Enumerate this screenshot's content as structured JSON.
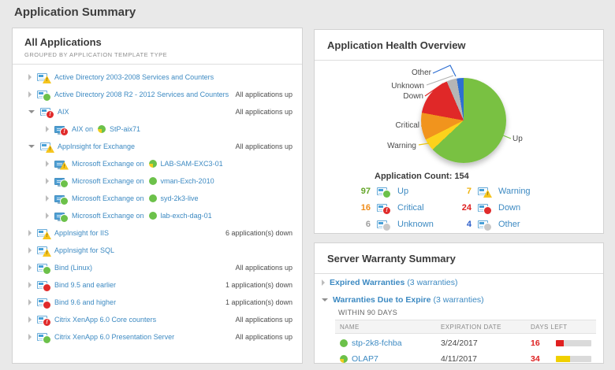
{
  "page": {
    "title": "Application Summary"
  },
  "all_applications": {
    "title": "All Applications",
    "subtitle": "GROUPED BY APPLICATION TEMPLATE TYPE",
    "rows": [
      {
        "level": 0,
        "arrow": "collapsed",
        "icon": "template",
        "status": "warning",
        "label": "Active Directory 2003-2008 Services and Counters",
        "status_text": ""
      },
      {
        "level": 0,
        "arrow": "collapsed",
        "icon": "template",
        "status": "up",
        "label": "Active Directory 2008 R2 - 2012 Services and Counters",
        "status_text": "All applications up"
      },
      {
        "level": 0,
        "arrow": "expanded",
        "icon": "template",
        "status": "critical",
        "label": "AIX",
        "status_text": "All applications up"
      },
      {
        "level": 1,
        "arrow": "collapsed",
        "icon": "monitor",
        "status": "critical",
        "label": "AIX on",
        "node": {
          "icon": "green-yellow",
          "name": "StP-aix71"
        }
      },
      {
        "level": 0,
        "arrow": "expanded",
        "icon": "template",
        "status": "warning",
        "label": "AppInsight for Exchange",
        "status_text": "All applications up"
      },
      {
        "level": 1,
        "arrow": "collapsed",
        "icon": "monitor",
        "status": "warning",
        "label": "Microsoft Exchange on",
        "node": {
          "icon": "green-yellow",
          "name": "LAB-SAM-EXC3-01"
        }
      },
      {
        "level": 1,
        "arrow": "collapsed",
        "icon": "monitor",
        "status": "up",
        "label": "Microsoft Exchange on",
        "node": {
          "icon": "green",
          "name": "vman-Exch-2010"
        }
      },
      {
        "level": 1,
        "arrow": "collapsed",
        "icon": "monitor",
        "status": "up",
        "label": "Microsoft Exchange on",
        "node": {
          "icon": "green",
          "name": "syd-2k3-live"
        }
      },
      {
        "level": 1,
        "arrow": "collapsed",
        "icon": "monitor",
        "status": "up",
        "label": "Microsoft Exchange on",
        "node": {
          "icon": "green",
          "name": "lab-exch-dag-01"
        }
      },
      {
        "level": 0,
        "arrow": "collapsed",
        "icon": "template",
        "status": "warning",
        "label": "AppInsight for IIS",
        "status_text": "6 application(s) down"
      },
      {
        "level": 0,
        "arrow": "collapsed",
        "icon": "template",
        "status": "warning",
        "label": "AppInsight for SQL",
        "status_text": ""
      },
      {
        "level": 0,
        "arrow": "collapsed",
        "icon": "template",
        "status": "up",
        "label": "Bind (Linux)",
        "status_text": "All applications up"
      },
      {
        "level": 0,
        "arrow": "collapsed",
        "icon": "template",
        "status": "down",
        "label": "Bind 9.5 and earlier",
        "status_text": "1 application(s) down"
      },
      {
        "level": 0,
        "arrow": "collapsed",
        "icon": "template",
        "status": "down",
        "label": "Bind 9.6 and higher",
        "status_text": "1 application(s) down"
      },
      {
        "level": 0,
        "arrow": "collapsed",
        "icon": "template",
        "status": "critical",
        "label": "Citrix XenApp 6.0 Core counters",
        "status_text": "All applications up"
      },
      {
        "level": 0,
        "arrow": "collapsed",
        "icon": "template",
        "status": "up",
        "label": "Citrix XenApp 6.0 Presentation Server",
        "status_text": "All applications up"
      }
    ]
  },
  "health": {
    "title": "Application Health Overview",
    "count_label": "Application Count: 154"
  },
  "chart_data": {
    "type": "pie",
    "title": "Application Health Overview",
    "total": 154,
    "total_label": "Application Count: 154",
    "legend_position": "bottom",
    "slices": [
      {
        "label": "Up",
        "value": 97,
        "color": "#79c142",
        "count_color": "#64a529",
        "badge": "up"
      },
      {
        "label": "Warning",
        "value": 7,
        "color": "#fcd21c",
        "count_color": "#efb310",
        "badge": "warning"
      },
      {
        "label": "Critical",
        "value": 16,
        "color": "#f1941d",
        "count_color": "#ef8c1a",
        "badge": "critical"
      },
      {
        "label": "Down",
        "value": 24,
        "color": "#e02828",
        "count_color": "#de2020",
        "badge": "down"
      },
      {
        "label": "Unknown",
        "value": 6,
        "color": "#b5b5b5",
        "count_color": "#9e9e9e",
        "badge": "muted"
      },
      {
        "label": "Other",
        "value": 4,
        "color": "#2e6fd2",
        "count_color": "#2d5ec9",
        "badge": "muted"
      }
    ]
  },
  "warranty": {
    "title": "Server Warranty Summary",
    "groups": [
      {
        "arrow": "collapsed",
        "name": "Expired Warranties",
        "suffix": "(3 warranties)"
      },
      {
        "arrow": "expanded",
        "name": "Warranties Due to Expire",
        "suffix": "(3 warranties)"
      }
    ],
    "within_label": "WITHIN 90 DAYS",
    "table": {
      "headers": [
        "NAME",
        "EXPIRATION DATE",
        "DAYS LEFT"
      ],
      "rows": [
        {
          "icon": "green",
          "name": "stp-2k8-fchba",
          "expiration": "3/24/2017",
          "days_left": "16",
          "bar_color": "#e02020",
          "bar_pct": 22
        },
        {
          "icon": "green-yellow",
          "name": "OLAP7",
          "expiration": "4/11/2017",
          "days_left": "34",
          "bar_color": "#f0d000",
          "bar_pct": 40
        }
      ]
    }
  }
}
